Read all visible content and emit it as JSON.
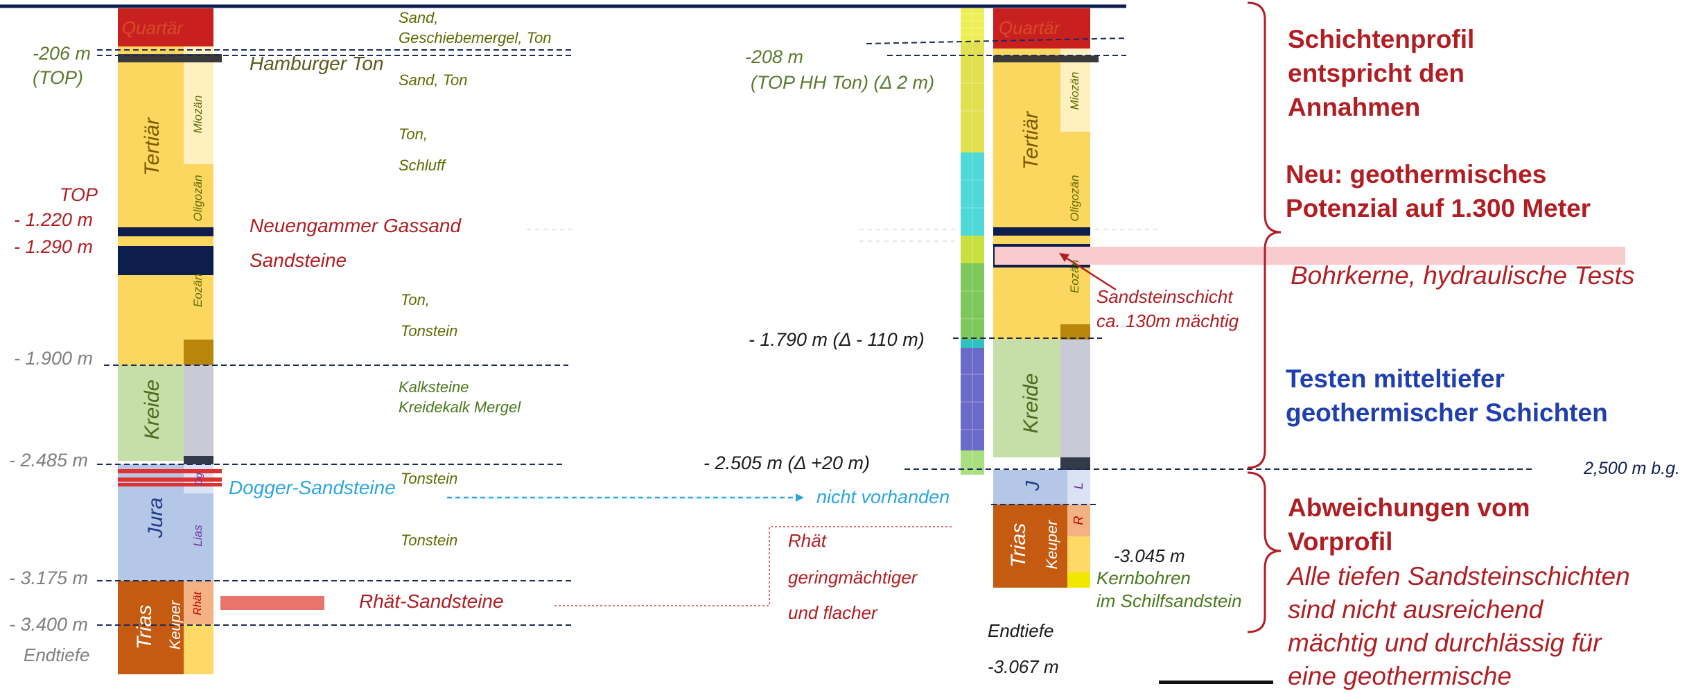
{
  "left_profile": {
    "depth_labels": {
      "d206": "-206 m",
      "top1": "(TOP)",
      "top2": "TOP",
      "d1220": "- 1.220 m",
      "d1290": "- 1.290 m",
      "d1900": "- 1.900 m",
      "d2485": "- 2.485 m",
      "d3175": "- 3.175 m",
      "d3400": "- 3.400 m",
      "endtiefe": "Endtiefe"
    },
    "periods": {
      "quartaer": "Quartär",
      "tertiaer": "Tertiär",
      "kreide": "Kreide",
      "jura": "Jura",
      "trias": "Trias"
    },
    "epochs": {
      "miozaen": "Miozän",
      "oligozaen": "Oligozän",
      "eozaen": "Eozän",
      "dogger": "Dg",
      "lias": "Lias",
      "keuper": "Keuper",
      "rhaet": "Rhät"
    },
    "lithology": {
      "l1a": "Sand,",
      "l1b": "Geschiebemergel, Ton",
      "l2": "Sand, Ton",
      "l3": "Ton,",
      "l4": "Schluff",
      "l5": "Ton,",
      "l6": "Tonstein",
      "l7a": "Kalksteine",
      "l7b": "Kreidekalk Mergel",
      "l8": "Tonstein",
      "l9": "Tonstein"
    },
    "units": {
      "hamburger_ton": "Hamburger Ton",
      "gassand": "Neuengammer Gassand",
      "sandsteine": "Sandsteine",
      "dogger_sandsteine": "Dogger-Sandsteine",
      "rhaet_sandsteine": "Rhät-Sandsteine"
    }
  },
  "right_profile": {
    "labels": {
      "d208": "-208 m",
      "top_hh": "(TOP HH Ton) (Δ 2 m)",
      "d1790": "- 1.790 m (Δ - 110 m)",
      "d2505": "- 2.505 m (Δ +20 m)",
      "nicht_vorhanden": "nicht vorhanden",
      "rhaet1": "Rhät",
      "rhaet2": "geringmächtiger",
      "rhaet3": "und flacher",
      "sand1": "Sandsteinschicht",
      "sand2": "ca. 130m mächtig",
      "d3045": "-3.045 m",
      "kern1": "Kernbohren",
      "kern2": "im Schilfsandstein",
      "endtiefe": "Endtiefe",
      "d3067": "-3.067 m",
      "bg2500": "2,500 m b.g."
    },
    "periods": {
      "quartaer": "Quartär",
      "tertiaer": "Tertiär",
      "kreide": "Kreide",
      "jura": "J",
      "trias": "Trias"
    },
    "epochs": {
      "miozaen": "Miozän",
      "oligozaen": "Oligozän",
      "eozaen": "Eozän",
      "lias": "L",
      "rhaet": "R",
      "keuper": "Keuper"
    }
  },
  "summary": {
    "s1": "Schichtenprofil",
    "s2": "entspricht den",
    "s3": "Annahmen",
    "n1": "Neu: geothermisches",
    "n2": "Potenzial auf 1.300 Meter",
    "bohrkerne": "Bohrkerne, hydraulische Tests",
    "t1": "Testen mitteltiefer",
    "t2": "geothermischer Schichten",
    "a1": "Abweichungen vom",
    "a2": "Vorprofil",
    "b1": "Alle tiefen Sandsteinschichten",
    "b2": "sind nicht ausreichend",
    "b3": "mächtig und durchlässig für",
    "b4": "eine geothermische"
  },
  "colors": {
    "quartaer": "#c8201e",
    "tertiaer": "#fcd75f",
    "kreide": "#c6dfa8",
    "jura": "#b4c7e7",
    "trias": "#c55a11",
    "dark_navy": "#0d1e4d",
    "title_red": "#b01e23",
    "title_blue": "#1f3fae",
    "dogger_blue": "#2aa6de"
  }
}
